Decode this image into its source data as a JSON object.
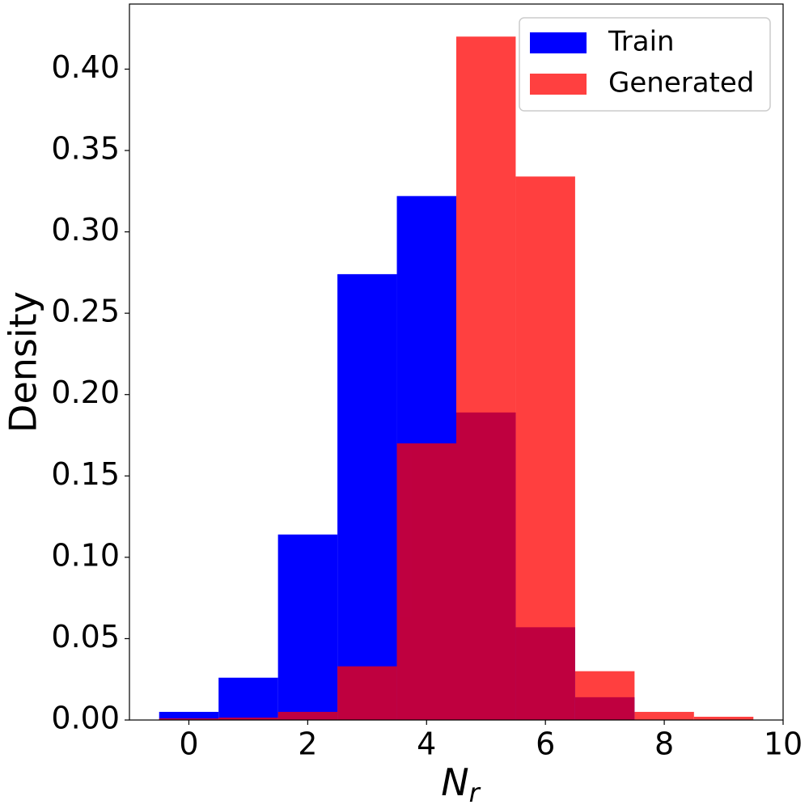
{
  "chart_data": {
    "type": "histogram",
    "xlabel": "N",
    "xlabel_subscript": "r",
    "ylabel": "Density",
    "bins": [
      -0.5,
      0.5,
      1.5,
      2.5,
      3.5,
      4.5,
      5.5,
      6.5,
      7.5,
      8.5,
      9.5
    ],
    "series": [
      {
        "name": "Train",
        "color": "#0000ff",
        "opacity": 1,
        "values": [
          0.005,
          0.026,
          0.114,
          0.274,
          0.322,
          0.189,
          0.057,
          0.014,
          0,
          0
        ]
      },
      {
        "name": "Generated",
        "color": "#ff0000",
        "opacity": 0.75,
        "values": [
          0.001,
          0.0015,
          0.005,
          0.033,
          0.17,
          0.42,
          0.334,
          0.03,
          0.005,
          0.002
        ]
      }
    ],
    "xlim": [
      -1,
      10
    ],
    "ylim": [
      0,
      0.44
    ],
    "xticks": [
      0,
      2,
      4,
      6,
      8,
      10
    ],
    "yticks": [
      {
        "value": 0,
        "label": "0.00"
      },
      {
        "value": 0.05,
        "label": "0.05"
      },
      {
        "value": 0.1,
        "label": "0.10"
      },
      {
        "value": 0.15,
        "label": "0.15"
      },
      {
        "value": 0.2,
        "label": "0.20"
      },
      {
        "value": 0.25,
        "label": "0.25"
      },
      {
        "value": 0.3,
        "label": "0.30"
      },
      {
        "value": 0.35,
        "label": "0.35"
      },
      {
        "value": 0.4,
        "label": "0.40"
      }
    ],
    "legend": "upper right"
  }
}
